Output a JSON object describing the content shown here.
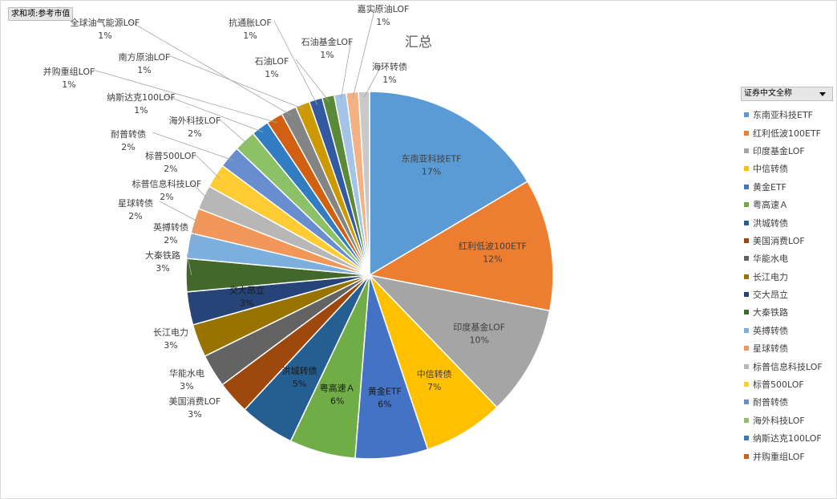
{
  "field_button": "求和项:参考市值",
  "legend_header": "证券中文全称",
  "chart_data": {
    "type": "pie",
    "title": "汇总",
    "legend_position": "right",
    "slices": [
      {
        "name": "东南亚科技ETF",
        "pct": "17%",
        "value": 17,
        "color": "#5b9bd5"
      },
      {
        "name": "红利低波100ETF",
        "pct": "12%",
        "value": 12,
        "color": "#ed7d31"
      },
      {
        "name": "印度基金LOF",
        "pct": "10%",
        "value": 10,
        "color": "#a5a5a5"
      },
      {
        "name": "中信转债",
        "pct": "7%",
        "value": 7.3,
        "color": "#ffc000"
      },
      {
        "name": "黄金ETF",
        "pct": "6%",
        "value": 6.6,
        "color": "#4472c4"
      },
      {
        "name": "粤高速Ａ",
        "pct": "6%",
        "value": 6,
        "color": "#70ad47"
      },
      {
        "name": "洪城转债",
        "pct": "5%",
        "value": 5,
        "color": "#255e91"
      },
      {
        "name": "美国消费LOF",
        "pct": "3%",
        "value": 3,
        "color": "#9e480e"
      },
      {
        "name": "华能水电",
        "pct": "3%",
        "value": 3,
        "color": "#636363"
      },
      {
        "name": "长江电力",
        "pct": "3%",
        "value": 3,
        "color": "#997300"
      },
      {
        "name": "交大昂立",
        "pct": "3%",
        "value": 3,
        "color": "#264478"
      },
      {
        "name": "大秦铁路",
        "pct": "3%",
        "value": 3,
        "color": "#43682b"
      },
      {
        "name": "英搏转债",
        "pct": "2%",
        "value": 2.3,
        "color": "#7cafdd"
      },
      {
        "name": "星球转债",
        "pct": "2%",
        "value": 2.3,
        "color": "#f1975a"
      },
      {
        "name": "标普信息科技LOF",
        "pct": "2%",
        "value": 2.2,
        "color": "#b7b7b7"
      },
      {
        "name": "标普500LOF",
        "pct": "2%",
        "value": 2.2,
        "color": "#ffcd33"
      },
      {
        "name": "耐普转债",
        "pct": "2%",
        "value": 2,
        "color": "#698ed0"
      },
      {
        "name": "海外科技LOF",
        "pct": "2%",
        "value": 2,
        "color": "#8cc168"
      },
      {
        "name": "纳斯达克100LOF",
        "pct": "1%",
        "value": 1.6,
        "color": "#327dc2"
      },
      {
        "name": "并购重组LOF",
        "pct": "1%",
        "value": 1.5,
        "color": "#d26012"
      },
      {
        "name": "全球油气能源LOF",
        "pct": "1%",
        "value": 1.4,
        "color": "#848484"
      },
      {
        "name": "南方原油LOF",
        "pct": "1%",
        "value": 1.3,
        "color": "#cc9a00"
      },
      {
        "name": "抗通胀LOF",
        "pct": "1%",
        "value": 1.2,
        "color": "#335aa1"
      },
      {
        "name": "石油LOF",
        "pct": "1%",
        "value": 1.1,
        "color": "#5a8a39"
      },
      {
        "name": "石油基金LOF",
        "pct": "1%",
        "value": 1.1,
        "color": "#a3c4e6"
      },
      {
        "name": "嘉实原油LOF",
        "pct": "1%",
        "value": 1.1,
        "color": "#f4b183"
      },
      {
        "name": "海环转债",
        "pct": "1%",
        "value": 1,
        "color": "#c9c9c9"
      }
    ]
  }
}
